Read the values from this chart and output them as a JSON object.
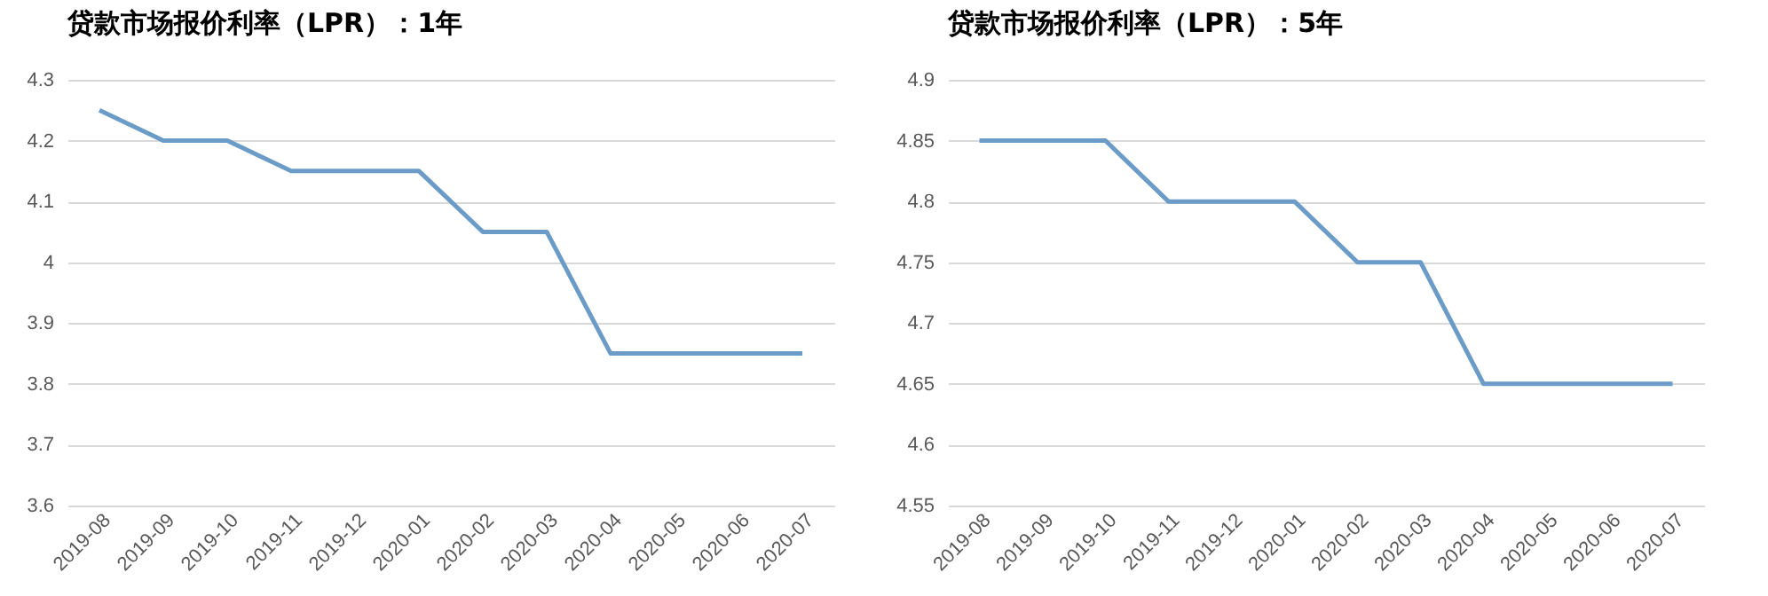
{
  "chart_data": [
    {
      "type": "line",
      "title": "贷款市场报价利率（LPR）：1年",
      "categories": [
        "2019-08",
        "2019-09",
        "2019-10",
        "2019-11",
        "2019-12",
        "2020-01",
        "2020-02",
        "2020-03",
        "2020-04",
        "2020-05",
        "2020-06",
        "2020-07"
      ],
      "series": [
        {
          "color": "#6b9bc7",
          "values": [
            4.25,
            4.2,
            4.2,
            4.15,
            4.15,
            4.15,
            4.05,
            4.05,
            3.85,
            3.85,
            3.85,
            3.85
          ]
        }
      ],
      "ylim": [
        3.6,
        4.3
      ],
      "yticks": [
        3.6,
        3.7,
        3.8,
        3.9,
        4,
        4.1,
        4.2,
        4.3
      ],
      "grid": "y",
      "marker": "none",
      "line_style": "solid"
    },
    {
      "type": "line",
      "title": "贷款市场报价利率（LPR）：5年",
      "categories": [
        "2019-08",
        "2019-09",
        "2019-10",
        "2019-11",
        "2019-12",
        "2020-01",
        "2020-02",
        "2020-03",
        "2020-04",
        "2020-05",
        "2020-06",
        "2020-07"
      ],
      "series": [
        {
          "color": "#6b9bc7",
          "values": [
            4.85,
            4.85,
            4.85,
            4.8,
            4.8,
            4.8,
            4.75,
            4.75,
            4.65,
            4.65,
            4.65,
            4.65
          ]
        }
      ],
      "ylim": [
        4.55,
        4.9
      ],
      "yticks": [
        4.55,
        4.6,
        4.65,
        4.7,
        4.75,
        4.8,
        4.85,
        4.9
      ],
      "grid": "y",
      "marker": "none",
      "line_style": "solid"
    }
  ]
}
